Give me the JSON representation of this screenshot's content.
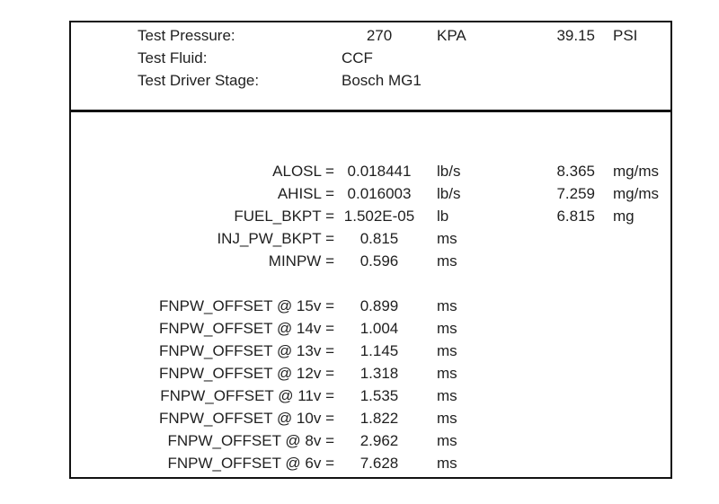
{
  "header": {
    "rows": [
      {
        "label": "Test Pressure:",
        "value": "270",
        "unit": "KPA",
        "value2": "39.15",
        "unit2": "PSI"
      },
      {
        "label": "Test Fluid:",
        "value": "CCF",
        "unit": "",
        "value2": "",
        "unit2": ""
      },
      {
        "label": "Test Driver Stage:",
        "value": "Bosch MG1",
        "unit": "",
        "value2": "",
        "unit2": ""
      }
    ]
  },
  "parameters": [
    {
      "label": "ALOSL =",
      "value": "0.018441",
      "unit": "lb/s",
      "value2": "8.365",
      "unit2": "mg/ms"
    },
    {
      "label": "AHISL =",
      "value": "0.016003",
      "unit": "lb/s",
      "value2": "7.259",
      "unit2": "mg/ms"
    },
    {
      "label": "FUEL_BKPT =",
      "value": "1.502E-05",
      "unit": "lb",
      "value2": "6.815",
      "unit2": "mg"
    },
    {
      "label": "INJ_PW_BKPT =",
      "value": "0.815",
      "unit": "ms",
      "value2": "",
      "unit2": ""
    },
    {
      "label": "MINPW =",
      "value": "0.596",
      "unit": "ms",
      "value2": "",
      "unit2": ""
    }
  ],
  "offsets": [
    {
      "label": "FNPW_OFFSET @ 15v =",
      "value": "0.899",
      "unit": "ms"
    },
    {
      "label": "FNPW_OFFSET @ 14v =",
      "value": "1.004",
      "unit": "ms"
    },
    {
      "label": "FNPW_OFFSET @ 13v =",
      "value": "1.145",
      "unit": "ms"
    },
    {
      "label": "FNPW_OFFSET @ 12v =",
      "value": "1.318",
      "unit": "ms"
    },
    {
      "label": "FNPW_OFFSET @ 11v =",
      "value": "1.535",
      "unit": "ms"
    },
    {
      "label": "FNPW_OFFSET @ 10v =",
      "value": "1.822",
      "unit": "ms"
    },
    {
      "label": "FNPW_OFFSET @ 8v =",
      "value": "2.962",
      "unit": "ms"
    },
    {
      "label": "FNPW_OFFSET @ 6v =",
      "value": "7.628",
      "unit": "ms"
    }
  ]
}
